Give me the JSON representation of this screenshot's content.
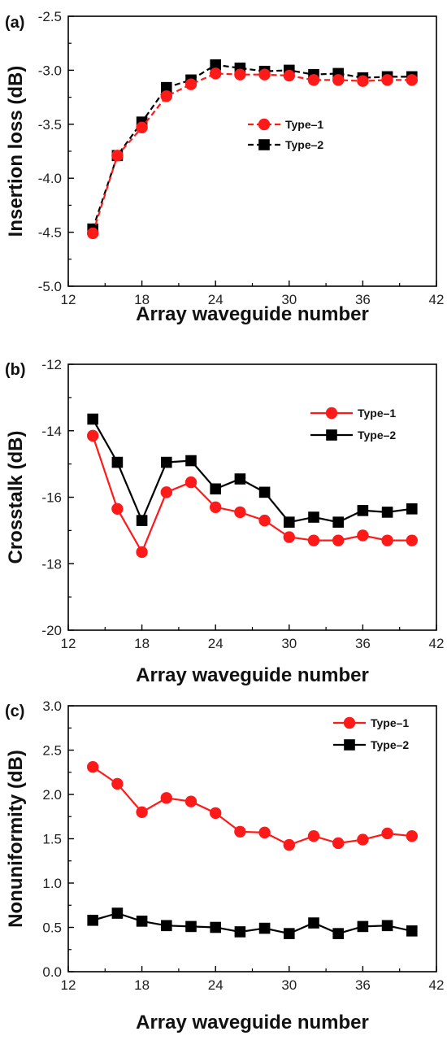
{
  "colors": {
    "type1": "#ff1a1a",
    "type2": "#000000"
  },
  "chart_data": [
    {
      "type": "line",
      "panel_label": "(a)",
      "xlabel": "Array waveguide number",
      "ylabel": "Insertion loss (dB)",
      "xlim": [
        12,
        42
      ],
      "ylim": [
        -5.0,
        -2.5
      ],
      "xticks": [
        "12",
        "18",
        "24",
        "30",
        "36",
        "42"
      ],
      "yticks": [
        "-5.0",
        "-4.5",
        "-4.0",
        "-3.5",
        "-3.0",
        "-2.5"
      ],
      "legend_position": "center-right",
      "line_style": "dashed",
      "x": [
        14,
        16,
        18,
        20,
        22,
        24,
        26,
        28,
        30,
        32,
        34,
        36,
        38,
        40
      ],
      "series": [
        {
          "name": "Type–1",
          "color": "#ff1a1a",
          "marker": "circle",
          "values": [
            -4.51,
            -3.79,
            -3.53,
            -3.24,
            -3.13,
            -3.03,
            -3.04,
            -3.04,
            -3.05,
            -3.09,
            -3.09,
            -3.1,
            -3.09,
            -3.09
          ]
        },
        {
          "name": "Type–2",
          "color": "#000000",
          "marker": "square",
          "values": [
            -4.47,
            -3.79,
            -3.48,
            -3.16,
            -3.09,
            -2.95,
            -2.98,
            -3.01,
            -3.0,
            -3.04,
            -3.03,
            -3.07,
            -3.06,
            -3.06
          ]
        }
      ]
    },
    {
      "type": "line",
      "panel_label": "(b)",
      "xlabel": "Array waveguide number",
      "ylabel": "Crosstalk (dB)",
      "xlim": [
        12,
        42
      ],
      "ylim": [
        -20,
        -12
      ],
      "xticks": [
        "12",
        "18",
        "24",
        "30",
        "36",
        "42"
      ],
      "yticks": [
        "-20",
        "-18",
        "-16",
        "-14",
        "-12"
      ],
      "legend_position": "top-right",
      "line_style": "solid",
      "x": [
        14,
        16,
        18,
        20,
        22,
        24,
        26,
        28,
        30,
        32,
        34,
        36,
        38,
        40
      ],
      "series": [
        {
          "name": "Type–1",
          "color": "#ff1a1a",
          "marker": "circle",
          "values": [
            -14.15,
            -16.35,
            -17.65,
            -15.85,
            -15.55,
            -16.3,
            -16.45,
            -16.7,
            -17.2,
            -17.3,
            -17.3,
            -17.15,
            -17.3,
            -17.3
          ]
        },
        {
          "name": "Type–2",
          "color": "#000000",
          "marker": "square",
          "values": [
            -13.65,
            -14.95,
            -16.7,
            -14.95,
            -14.9,
            -15.75,
            -15.45,
            -15.85,
            -16.75,
            -16.6,
            -16.75,
            -16.4,
            -16.45,
            -16.35
          ]
        }
      ]
    },
    {
      "type": "line",
      "panel_label": "(c)",
      "xlabel": "Array waveguide number",
      "ylabel": "Nonuniformity (dB)",
      "xlim": [
        12,
        42
      ],
      "ylim": [
        0.0,
        3.0
      ],
      "xticks": [
        "12",
        "18",
        "24",
        "30",
        "36",
        "42"
      ],
      "yticks": [
        "0.0",
        "0.5",
        "1.0",
        "1.5",
        "2.0",
        "2.5",
        "3.0"
      ],
      "legend_position": "top-right",
      "line_style": "solid",
      "x": [
        14,
        16,
        18,
        20,
        22,
        24,
        26,
        28,
        30,
        32,
        34,
        36,
        38,
        40
      ],
      "series": [
        {
          "name": "Type–1",
          "color": "#ff1a1a",
          "marker": "circle",
          "values": [
            2.31,
            2.12,
            1.8,
            1.96,
            1.92,
            1.79,
            1.58,
            1.57,
            1.43,
            1.53,
            1.45,
            1.49,
            1.56,
            1.53
          ]
        },
        {
          "name": "Type–2",
          "color": "#000000",
          "marker": "square",
          "values": [
            0.58,
            0.66,
            0.57,
            0.52,
            0.51,
            0.5,
            0.45,
            0.49,
            0.43,
            0.55,
            0.43,
            0.51,
            0.52,
            0.46
          ]
        }
      ]
    }
  ]
}
